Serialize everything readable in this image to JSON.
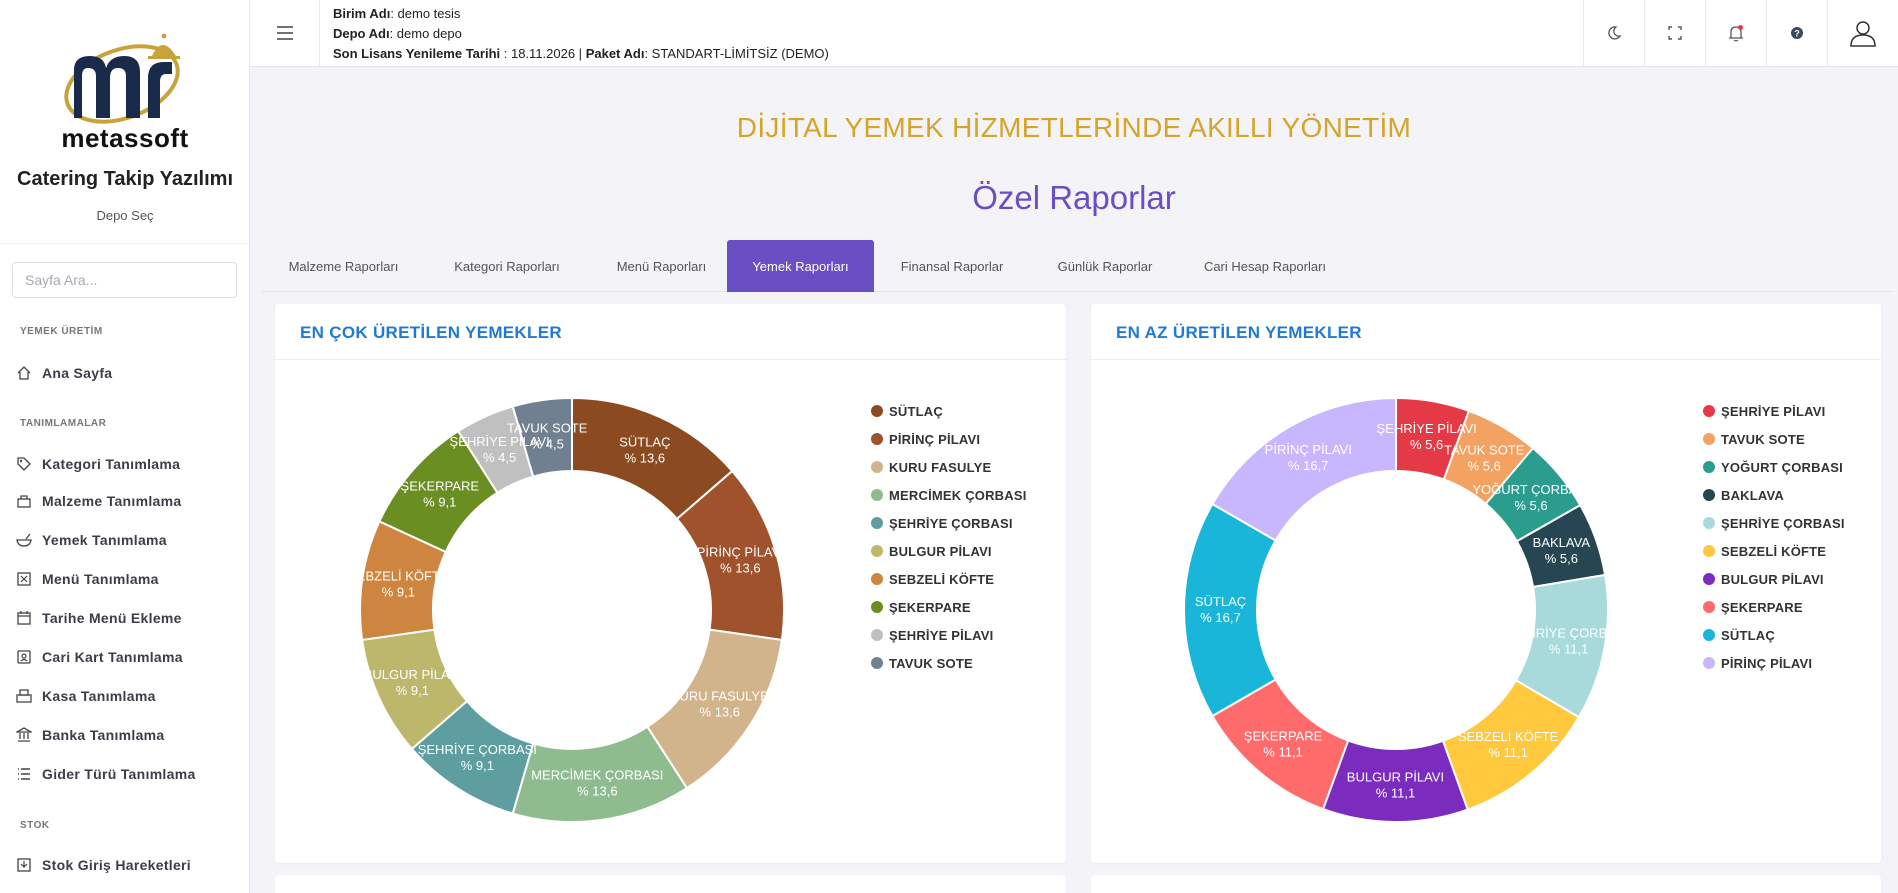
{
  "sidebar": {
    "logo_text": "metassoft",
    "app_name": "Catering Takip Yazılımı",
    "depo_sec": "Depo Seç",
    "search_placeholder": "Sayfa Ara...",
    "sections": {
      "yemek_uretim": "YEMEK ÜRETİM",
      "tanimlamalar": "TANIMLAMALAR",
      "stok": "STOK"
    },
    "items": {
      "ana_sayfa": "Ana Sayfa",
      "kategori": "Kategori Tanımlama",
      "malzeme": "Malzeme Tanımlama",
      "yemek": "Yemek Tanımlama",
      "menu": "Menü Tanımlama",
      "tarihe_menu": "Tarihe Menü Ekleme",
      "cari_kart": "Cari Kart Tanımlama",
      "kasa": "Kasa Tanımlama",
      "banka": "Banka Tanımlama",
      "gider": "Gider Türü Tanımlama",
      "stok_giris": "Stok Giriş Hareketleri"
    }
  },
  "header": {
    "birim_label": "Birim Adı",
    "birim_value": ": demo tesis",
    "depo_label": "Depo Adı",
    "depo_value": ": demo depo",
    "lisans_label": "Son Lisans Yenileme Tarihi",
    "lisans_value": " : 18.11.2026 | ",
    "paket_label": "Paket Adı",
    "paket_value": ": STANDART-LİMİTSİZ (DEMO)",
    "icons": [
      "menu-icon",
      "moon-icon",
      "fullscreen-icon",
      "bell-icon",
      "help-icon",
      "user-icon"
    ]
  },
  "main": {
    "slogan": "DİJİTAL YEMEK HİZMETLERİNDE AKILLI YÖNETİM",
    "title": "Özel Raporlar",
    "tabs": {
      "malzeme": "Malzeme Raporları",
      "kategori": "Kategori Raporları",
      "menu": "Menü Raporları",
      "yemek": "Yemek Raporları",
      "finansal": "Finansal Raporlar",
      "gunluk": "Günlük Raporlar",
      "cari": "Cari Hesap Raporları"
    },
    "active_tab": "Yemek Raporları"
  },
  "chart_data": [
    {
      "type": "pie",
      "title": "EN ÇOK ÜRETİLEN YEMEKLER",
      "labels": [
        "SÜTLAÇ",
        "PİRİNÇ PİLAVI",
        "KURU FASULYE",
        "MERCİMEK ÇORBASI",
        "ŞEHRİYE ÇORBASI",
        "BULGUR PİLAVI",
        "SEBZELİ KÖFTE",
        "ŞEKERPARE",
        "ŞEHRİYE PİLAVI",
        "TAVUK SOTE"
      ],
      "values": [
        13.6,
        13.6,
        13.6,
        13.6,
        9.1,
        9.1,
        9.1,
        9.1,
        4.5,
        4.5
      ],
      "value_labels": [
        "% 13,6",
        "% 13,6",
        "% 13,6",
        "% 13,6",
        "% 9,1",
        "% 9,1",
        "% 9,1",
        "% 9,1",
        "% 4,5",
        "% 4,5"
      ],
      "colors": [
        "#8b4a1f",
        "#a0522d",
        "#d2b48c",
        "#8fbc8f",
        "#5f9ea0",
        "#bdb76b",
        "#cd853f",
        "#6b8e23",
        "#c0c0c0",
        "#708090"
      ],
      "legend": "right"
    },
    {
      "type": "pie",
      "title": "EN AZ ÜRETİLEN YEMEKLER",
      "labels": [
        "ŞEHRİYE PİLAVI",
        "TAVUK SOTE",
        "YOĞURT ÇORBASI",
        "BAKLAVA",
        "ŞEHRİYE ÇORBASI",
        "SEBZELİ KÖFTE",
        "BULGUR PİLAVI",
        "ŞEKERPARE",
        "SÜTLAÇ",
        "PİRİNÇ PİLAVI"
      ],
      "values": [
        5.6,
        5.6,
        5.6,
        5.6,
        11.1,
        11.1,
        11.1,
        11.1,
        16.7,
        16.7
      ],
      "value_labels": [
        "% 5,6",
        "% 5,6",
        "% 5,6",
        "% 5,6",
        "% 11,1",
        "% 11,1",
        "% 11,1",
        "% 11,1",
        "% 16,7",
        "% 16,7"
      ],
      "colors": [
        "#e63946",
        "#f4a261",
        "#2a9d8f",
        "#264653",
        "#a8dadc",
        "#ffc83d",
        "#7b2cbf",
        "#ff6b6b",
        "#1ab6d9",
        "#c8b6ff"
      ],
      "legend": "right"
    }
  ]
}
